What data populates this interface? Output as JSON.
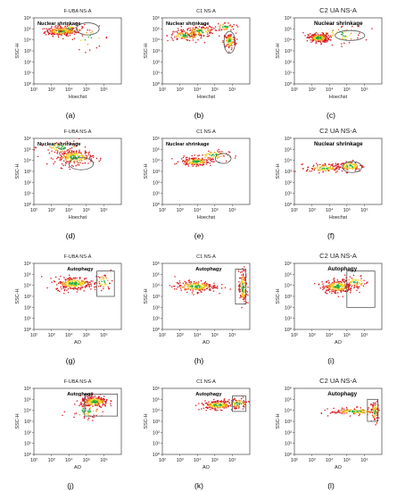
{
  "figure": {
    "panels": [
      {
        "letter": "(a)",
        "title": "F-UBA NS-A",
        "annotation": "Nuclear shrinkage",
        "gate": "ellipse",
        "xlabel": "Hoechst",
        "ylabel": "SSC-H"
      },
      {
        "letter": "(b)",
        "title": "C1 NS-A",
        "annotation": "Nuclear shrinkage",
        "gate": "ellipse",
        "xlabel": "Hoechst",
        "ylabel": "SSC-H"
      },
      {
        "letter": "(c)",
        "title": "C2 UA NS-A",
        "annotation": "Nuclear shrinkage",
        "gate": "ellipse",
        "xlabel": "Hoechst",
        "ylabel": "SSC-H"
      },
      {
        "letter": "(d)",
        "title": "F-UBA NS-A",
        "annotation": "Nuclear shrinkage",
        "gate": "ellipse",
        "xlabel": "Hoechst",
        "ylabel": "SSC-H"
      },
      {
        "letter": "(e)",
        "title": "C1 NS-A",
        "annotation": "Nuclear shrinkage",
        "gate": "ellipse",
        "xlabel": "Hoechst",
        "ylabel": "SSC-H"
      },
      {
        "letter": "(f)",
        "title": "C2 UA NS-A",
        "annotation": "Nuclear shrinkage",
        "gate": "ellipse",
        "xlabel": "Hoechst",
        "ylabel": "SSC-H"
      },
      {
        "letter": "(g)",
        "title": "F-UBA NS-A",
        "annotation": "Autophagy",
        "gate": "rect",
        "xlabel": "AO",
        "ylabel": "SSC-H"
      },
      {
        "letter": "(h)",
        "title": "C1 NS-A",
        "annotation": "Autophagy",
        "gate": "rect",
        "xlabel": "AO",
        "ylabel": "SSC-H"
      },
      {
        "letter": "(i)",
        "title": "C2 UA NS-A",
        "annotation": "Autophagy",
        "gate": "rect",
        "xlabel": "AO",
        "ylabel": "SSC-H"
      },
      {
        "letter": "(j)",
        "title": "F-UBA NS-A",
        "annotation": "Autophagy",
        "gate": "rect",
        "xlabel": "AO",
        "ylabel": "SSC-H"
      },
      {
        "letter": "(k)",
        "title": "C1 NS-A",
        "annotation": "Autophagy",
        "gate": "rect",
        "xlabel": "AO",
        "ylabel": "SSC-H"
      },
      {
        "letter": "(l)",
        "title": "C2 UA NS-A",
        "annotation": "Autophagy",
        "gate": "rect",
        "xlabel": "AO",
        "ylabel": "SSC-H"
      }
    ]
  },
  "chart_data": [
    {
      "type": "scatter",
      "title": "F-UBA NS-A",
      "xlabel": "Hoechst",
      "ylabel": "SSC-H",
      "xscale": "log",
      "yscale": "log",
      "xlim": [
        100,
        10000000
      ],
      "ylim": [
        1,
        1000000
      ],
      "xticks": [
        "10²",
        "10³",
        "10⁴",
        "10⁵",
        "10⁶"
      ],
      "yticks": [
        "10⁰",
        "10¹",
        "10²",
        "10³",
        "10⁴",
        "10⁵",
        "10⁶"
      ],
      "annotation": "Nuclear shrinkage",
      "clusters": [
        {
          "x": 3500,
          "y": 60000,
          "sx": 0.45,
          "sy": 0.2,
          "n": 220
        },
        {
          "x": 12000,
          "y": 90000,
          "sx": 0.4,
          "sy": 0.25,
          "n": 60
        },
        {
          "x": 150000,
          "y": 15000,
          "sx": 0.6,
          "sy": 0.5,
          "n": 25
        }
      ],
      "gate": {
        "shape": "ellipse",
        "cx": 120000,
        "cy": 100000,
        "rx": 0.65,
        "ry": 0.55
      }
    },
    {
      "type": "scatter",
      "title": "C1 NS-A",
      "xlabel": "Hoechst",
      "ylabel": "SSC-H",
      "xscale": "log",
      "yscale": "log",
      "xlim": [
        100,
        10000000
      ],
      "ylim": [
        1,
        1000000
      ],
      "xticks": [
        "10²",
        "10³",
        "10⁴",
        "10⁵",
        "10⁶"
      ],
      "yticks": [
        "10⁰",
        "10¹",
        "10²",
        "10³",
        "10⁴",
        "10⁵",
        "10⁶"
      ],
      "annotation": "Nuclear shrinkage",
      "clusters": [
        {
          "x": 2000,
          "y": 25000,
          "sx": 0.5,
          "sy": 0.25,
          "n": 120
        },
        {
          "x": 15000,
          "y": 60000,
          "sx": 0.45,
          "sy": 0.25,
          "n": 130
        },
        {
          "x": 700000,
          "y": 8000,
          "sx": 0.18,
          "sy": 0.35,
          "n": 110
        },
        {
          "x": 400000,
          "y": 150000,
          "sx": 0.3,
          "sy": 0.2,
          "n": 50
        }
      ],
      "gate": {
        "shape": "ellipse",
        "cx": 700000,
        "cy": 6000,
        "rx": 0.32,
        "ry": 1.0
      }
    },
    {
      "type": "scatter",
      "title": "C2 UA NS-A",
      "xlabel": "Hoechst",
      "ylabel": "SSC-H",
      "xscale": "log",
      "yscale": "log",
      "xlim": [
        100,
        10000000
      ],
      "ylim": [
        1,
        1000000
      ],
      "xticks": [
        "10²",
        "10³",
        "10⁴",
        "10⁵",
        "10⁶"
      ],
      "yticks": [
        "10⁰",
        "10¹",
        "10²",
        "10³",
        "10⁴",
        "10⁵",
        "10⁶"
      ],
      "annotation": "Nuclear shrinkage",
      "clusters": [
        {
          "x": 2500,
          "y": 15000,
          "sx": 0.3,
          "sy": 0.2,
          "n": 230
        },
        {
          "x": 40000,
          "y": 30000,
          "sx": 0.7,
          "sy": 0.45,
          "n": 50
        }
      ],
      "gate": {
        "shape": "ellipse",
        "cx": 150000,
        "cy": 25000,
        "rx": 0.85,
        "ry": 0.45
      }
    },
    {
      "type": "scatter",
      "title": "F-UBA NS-A",
      "xlabel": "Hoechst",
      "ylabel": "SSC-H",
      "xscale": "log",
      "yscale": "log",
      "xlim": [
        100,
        10000000
      ],
      "ylim": [
        1,
        1000000
      ],
      "xticks": [
        "10²",
        "10³",
        "10⁴",
        "10⁵",
        "10⁶"
      ],
      "yticks": [
        "10⁰",
        "10¹",
        "10²",
        "10³",
        "10⁴",
        "10⁵",
        "10⁶"
      ],
      "annotation": "Nuclear shrinkage",
      "clusters": [
        {
          "x": 20000,
          "y": 20000,
          "sx": 0.55,
          "sy": 0.35,
          "n": 230
        },
        {
          "x": 4000,
          "y": 150000,
          "sx": 0.6,
          "sy": 0.35,
          "n": 60
        }
      ],
      "gate": {
        "shape": "ellipse",
        "cx": 50000,
        "cy": 5000,
        "rx": 0.7,
        "ry": 0.55
      }
    },
    {
      "type": "scatter",
      "title": "C1 NS-A",
      "xlabel": "Hoechst",
      "ylabel": "SSC-H",
      "xscale": "log",
      "yscale": "log",
      "xlim": [
        100,
        10000000
      ],
      "ylim": [
        1,
        1000000
      ],
      "xticks": [
        "10²",
        "10³",
        "10⁴",
        "10⁵",
        "10⁶"
      ],
      "yticks": [
        "10⁰",
        "10¹",
        "10²",
        "10³",
        "10⁴",
        "10⁵",
        "10⁶"
      ],
      "annotation": "Nuclear shrinkage",
      "clusters": [
        {
          "x": 8000,
          "y": 8000,
          "sx": 0.45,
          "sy": 0.2,
          "n": 180
        },
        {
          "x": 80000,
          "y": 30000,
          "sx": 0.45,
          "sy": 0.25,
          "n": 60
        }
      ],
      "gate": {
        "shape": "ellipse",
        "cx": 300000,
        "cy": 15000,
        "rx": 0.45,
        "ry": 0.45
      }
    },
    {
      "type": "scatter",
      "title": "C2 UA NS-A",
      "xlabel": "Hoechst",
      "ylabel": "SSC-H",
      "xscale": "log",
      "yscale": "log",
      "xlim": [
        100,
        10000000
      ],
      "ylim": [
        1,
        1000000
      ],
      "xticks": [
        "10²",
        "10³",
        "10⁴",
        "10⁵",
        "10⁶"
      ],
      "yticks": [
        "10⁰",
        "10¹",
        "10²",
        "10³",
        "10⁴",
        "10⁵",
        "10⁶"
      ],
      "annotation": "Nuclear shrinkage",
      "clusters": [
        {
          "x": 5000,
          "y": 2000,
          "sx": 0.5,
          "sy": 0.2,
          "n": 120
        },
        {
          "x": 150000,
          "y": 3000,
          "sx": 0.4,
          "sy": 0.25,
          "n": 100
        }
      ],
      "gate": {
        "shape": "ellipse",
        "cx": 200000,
        "cy": 2500,
        "rx": 0.55,
        "ry": 0.5
      }
    },
    {
      "type": "scatter",
      "title": "F-UBA NS-A",
      "xlabel": "AO",
      "ylabel": "SSC-H",
      "xscale": "log",
      "yscale": "log",
      "xlim": [
        100,
        10000000
      ],
      "ylim": [
        1,
        1000000
      ],
      "xticks": [
        "10²",
        "10³",
        "10⁴",
        "10⁵",
        "10⁶"
      ],
      "yticks": [
        "10⁰",
        "10¹",
        "10²",
        "10³",
        "10⁴",
        "10⁵",
        "10⁶"
      ],
      "annotation": "Autophagy",
      "clusters": [
        {
          "x": 20000,
          "y": 15000,
          "sx": 0.55,
          "sy": 0.3,
          "n": 260
        },
        {
          "x": 1000000,
          "y": 20000,
          "sx": 0.25,
          "sy": 0.4,
          "n": 40
        }
      ],
      "gate": {
        "shape": "rect",
        "x0": 400000,
        "x1": 4000000,
        "y0": 1000,
        "y1": 200000
      }
    },
    {
      "type": "scatter",
      "title": "C1 NS-A",
      "xlabel": "AO",
      "ylabel": "SSC-H",
      "xscale": "log",
      "yscale": "log",
      "xlim": [
        100,
        10000000
      ],
      "ylim": [
        1,
        1000000
      ],
      "xticks": [
        "10²",
        "10³",
        "10⁴",
        "10⁵",
        "10⁶"
      ],
      "yticks": [
        "10⁰",
        "10¹",
        "10²",
        "10³",
        "10⁴",
        "10⁵",
        "10⁶"
      ],
      "annotation": "Autophagy",
      "clusters": [
        {
          "x": 8000,
          "y": 8000,
          "sx": 0.6,
          "sy": 0.25,
          "n": 220
        },
        {
          "x": 4000000,
          "y": 6000,
          "sx": 0.12,
          "sy": 0.8,
          "n": 140
        }
      ],
      "gate": {
        "shape": "rect",
        "x0": 1500000,
        "x1": 6000000,
        "y0": 200,
        "y1": 300000
      }
    },
    {
      "type": "scatter",
      "title": "C2 UA NS-A",
      "xlabel": "AO",
      "ylabel": "SSC-H",
      "xscale": "log",
      "yscale": "log",
      "xlim": [
        100,
        10000000
      ],
      "ylim": [
        1,
        1000000
      ],
      "xticks": [
        "10²",
        "10³",
        "10⁴",
        "10⁵",
        "10⁶"
      ],
      "yticks": [
        "10⁰",
        "10¹",
        "10²",
        "10³",
        "10⁴",
        "10⁵",
        "10⁶"
      ],
      "annotation": "Autophagy",
      "clusters": [
        {
          "x": 30000,
          "y": 8000,
          "sx": 0.45,
          "sy": 0.3,
          "n": 240
        },
        {
          "x": 300000,
          "y": 20000,
          "sx": 0.4,
          "sy": 0.3,
          "n": 60
        }
      ],
      "gate": {
        "shape": "rect",
        "x0": 100000,
        "x1": 4000000,
        "y0": 100,
        "y1": 200000
      }
    },
    {
      "type": "scatter",
      "title": "F-UBA NS-A",
      "xlabel": "AO",
      "ylabel": "SSC-H",
      "xscale": "log",
      "yscale": "log",
      "xlim": [
        100,
        10000000
      ],
      "ylim": [
        1,
        1000000
      ],
      "xticks": [
        "10²",
        "10³",
        "10⁴",
        "10⁵",
        "10⁶"
      ],
      "yticks": [
        "10⁰",
        "10¹",
        "10²",
        "10³",
        "10⁴",
        "10⁵",
        "10⁶"
      ],
      "annotation": "Autophagy",
      "clusters": [
        {
          "x": 300000,
          "y": 60000,
          "sx": 0.4,
          "sy": 0.25,
          "n": 260
        },
        {
          "x": 100000,
          "y": 10000,
          "sx": 0.5,
          "sy": 0.4,
          "n": 50
        }
      ],
      "gate": {
        "shape": "rect",
        "x0": 80000,
        "x1": 6000000,
        "y0": 3000,
        "y1": 300000
      }
    },
    {
      "type": "scatter",
      "title": "C1 NS-A",
      "xlabel": "AO",
      "ylabel": "SSC-H",
      "xscale": "log",
      "yscale": "log",
      "xlim": [
        100,
        10000000
      ],
      "ylim": [
        1,
        1000000
      ],
      "xticks": [
        "10²",
        "10³",
        "10⁴",
        "10⁵",
        "10⁶"
      ],
      "yticks": [
        "10⁰",
        "10¹",
        "10²",
        "10³",
        "10⁴",
        "10⁵",
        "10⁶"
      ],
      "annotation": "Autophagy",
      "clusters": [
        {
          "x": 150000,
          "y": 30000,
          "sx": 0.45,
          "sy": 0.2,
          "n": 200
        },
        {
          "x": 2000000,
          "y": 40000,
          "sx": 0.3,
          "sy": 0.25,
          "n": 70
        }
      ],
      "gate": {
        "shape": "rect",
        "x0": 1000000,
        "x1": 6000000,
        "y0": 8000,
        "y1": 200000
      }
    },
    {
      "type": "scatter",
      "title": "C2 UA NS-A",
      "xlabel": "AO",
      "ylabel": "SSC-H",
      "xscale": "log",
      "yscale": "log",
      "xlim": [
        100,
        10000000
      ],
      "ylim": [
        1,
        1000000
      ],
      "xticks": [
        "10²",
        "10³",
        "10⁴",
        "10⁵",
        "10⁶"
      ],
      "yticks": [
        "10⁰",
        "10¹",
        "10²",
        "10³",
        "10⁴",
        "10⁵",
        "10⁶"
      ],
      "annotation": "Autophagy",
      "clusters": [
        {
          "x": 300000,
          "y": 8000,
          "sx": 0.7,
          "sy": 0.15,
          "n": 140
        },
        {
          "x": 4000000,
          "y": 8000,
          "sx": 0.1,
          "sy": 0.5,
          "n": 80
        }
      ],
      "gate": {
        "shape": "rect",
        "x0": 1500000,
        "x1": 6000000,
        "y0": 1000,
        "y1": 100000
      }
    }
  ]
}
